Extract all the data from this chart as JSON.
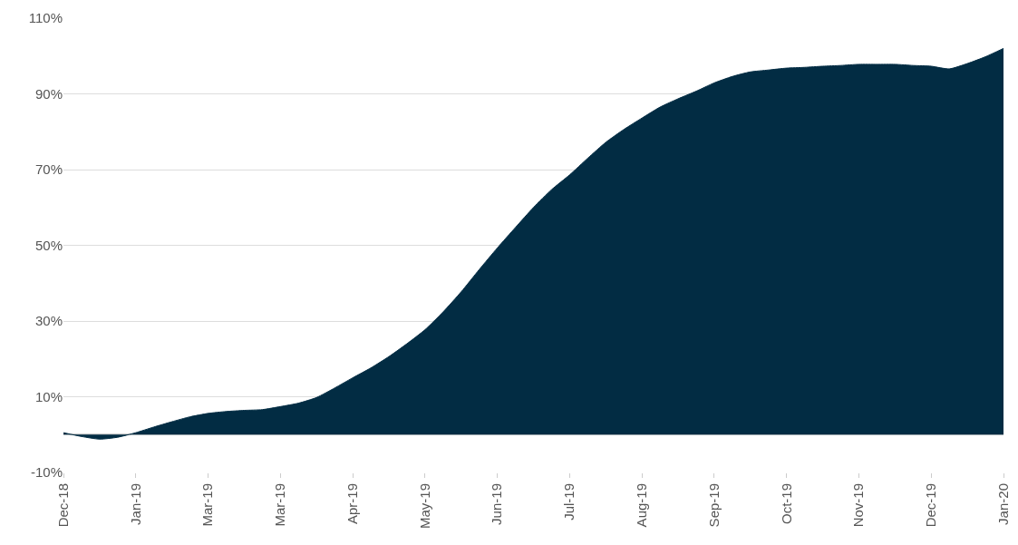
{
  "chart_data": {
    "type": "area",
    "categories": [
      "Dec-18",
      null,
      null,
      null,
      "Jan-19",
      null,
      null,
      null,
      "Mar-19",
      null,
      null,
      null,
      "Mar-19",
      null,
      null,
      null,
      "Apr-19",
      null,
      null,
      null,
      "May-19",
      null,
      null,
      null,
      "Jun-19",
      null,
      null,
      null,
      "Jul-19",
      null,
      null,
      null,
      "Aug-19",
      null,
      null,
      null,
      "Sep-19",
      null,
      null,
      null,
      "Oct-19",
      null,
      null,
      null,
      "Nov-19",
      null,
      null,
      null,
      "Dec-19",
      null,
      null,
      null,
      "Jan-20"
    ],
    "series": [
      {
        "color": "#022c43",
        "values": [
          0.5,
          -0.5,
          -1.2,
          -0.7,
          0.5,
          2,
          3.4,
          4.7,
          5.6,
          6.1,
          6.4,
          6.6,
          7.4,
          8.3,
          9.8,
          12.3,
          15,
          17.6,
          20.6,
          24,
          27.7,
          32.4,
          37.7,
          43.6,
          49.3,
          54.7,
          60,
          64.7,
          68.6,
          73,
          77.2,
          80.6,
          83.6,
          86.5,
          88.7,
          90.7,
          92.9,
          94.6,
          95.8,
          96.3,
          96.8,
          97,
          97.3,
          97.5,
          97.8,
          97.8,
          97.8,
          97.5,
          97.3,
          96.6,
          98,
          99.8,
          102
        ]
      }
    ],
    "ylim": [
      -10,
      110
    ],
    "yticks": [
      {
        "value": -10,
        "label": "-10%"
      },
      {
        "value": 10,
        "label": "10%"
      },
      {
        "value": 30,
        "label": "30%"
      },
      {
        "value": 50,
        "label": "50%"
      },
      {
        "value": 70,
        "label": "70%"
      },
      {
        "value": 90,
        "label": "90%"
      },
      {
        "value": 110,
        "label": "110%"
      }
    ],
    "grid": "y"
  }
}
